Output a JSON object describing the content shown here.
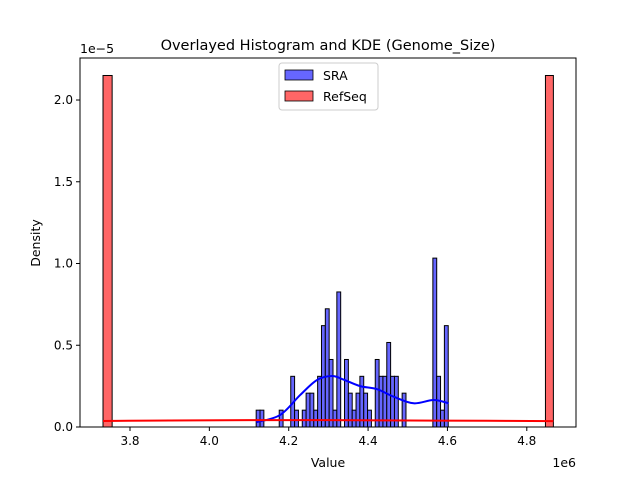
{
  "chart_data": {
    "type": "bar",
    "title": "Overlayed Histogram and KDE (Genome_Size)",
    "xlabel": "Value",
    "ylabel": "Density",
    "x_offset_label": "1e6",
    "y_offset_label": "1e−5",
    "xlim": [
      3.674,
      4.924
    ],
    "ylim": [
      0,
      2.257
    ],
    "x_ticks": [
      3.8,
      4.0,
      4.2,
      4.4,
      4.6,
      4.8
    ],
    "x_tick_labels": [
      "3.8",
      "4.0",
      "4.2",
      "4.4",
      "4.6",
      "4.8"
    ],
    "y_ticks": [
      0,
      0.5,
      1.0,
      1.5,
      2.0
    ],
    "y_tick_labels": [
      "0.0",
      "0.5",
      "1.0",
      "1.5",
      "2.0"
    ],
    "grid": false,
    "legend_position": "top-center",
    "series": [
      {
        "name": "SRA",
        "color": "#0000ff",
        "fill": "#6666ff",
        "bin_start": 4.118,
        "bin_width": 0.00968,
        "densities": [
          0.103,
          0.103,
          0,
          0,
          0,
          0,
          0.103,
          0,
          0,
          0.31,
          0.103,
          0,
          0.103,
          0.207,
          0.207,
          0.103,
          0.31,
          0.62,
          0.723,
          0.413,
          0.103,
          0.826,
          0,
          0.413,
          0.207,
          0.103,
          0.207,
          0.31,
          0.207,
          0.103,
          0,
          0.413,
          0.31,
          0.31,
          0.517,
          0.31,
          0.31,
          0,
          0.207,
          0,
          0,
          0,
          0,
          0,
          0,
          0,
          1.033,
          0.31,
          0.103,
          0.62
        ],
        "kde": {
          "x": [
            4.118,
            4.178,
            4.229,
            4.271,
            4.309,
            4.338,
            4.38,
            4.422,
            4.464,
            4.515,
            4.565,
            4.603
          ],
          "y": [
            0.029,
            0.073,
            0.196,
            0.287,
            0.312,
            0.29,
            0.25,
            0.232,
            0.186,
            0.145,
            0.165,
            0.145
          ]
        }
      },
      {
        "name": "RefSeq",
        "color": "#ff0000",
        "fill": "#ff6666",
        "bars": [
          {
            "x0": 3.732,
            "x1": 3.755,
            "density": 2.15
          },
          {
            "x0": 4.847,
            "x1": 4.867,
            "density": 2.15
          }
        ],
        "kde": {
          "x": [
            3.732,
            3.9,
            4.1,
            4.3,
            4.5,
            4.7,
            4.867
          ],
          "y": [
            0.037,
            0.04,
            0.042,
            0.042,
            0.04,
            0.038,
            0.036
          ]
        }
      }
    ]
  }
}
